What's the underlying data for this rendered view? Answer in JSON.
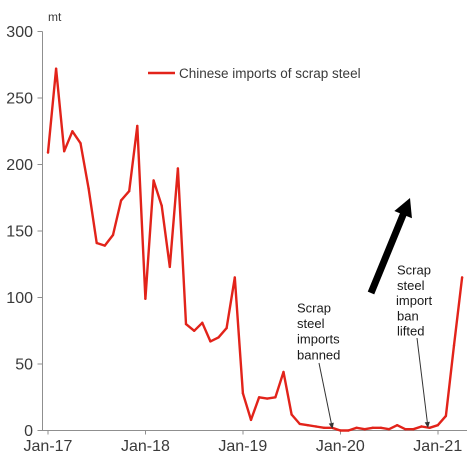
{
  "chart_data": {
    "type": "line",
    "ylabel": "mt",
    "ylim": [
      0,
      300
    ],
    "y_ticks": [
      0,
      50,
      100,
      150,
      200,
      250,
      300
    ],
    "x_ticks": [
      "Jan-17",
      "Jan-18",
      "Jan-19",
      "Jan-20",
      "Jan-21"
    ],
    "x": [
      "Jan-17",
      "Feb-17",
      "Mar-17",
      "Apr-17",
      "May-17",
      "Jun-17",
      "Jul-17",
      "Aug-17",
      "Sep-17",
      "Oct-17",
      "Nov-17",
      "Dec-17",
      "Jan-18",
      "Feb-18",
      "Mar-18",
      "Apr-18",
      "May-18",
      "Jun-18",
      "Jul-18",
      "Aug-18",
      "Sep-18",
      "Oct-18",
      "Nov-18",
      "Dec-18",
      "Jan-19",
      "Feb-19",
      "Mar-19",
      "Apr-19",
      "May-19",
      "Jun-19",
      "Jul-19",
      "Aug-19",
      "Sep-19",
      "Oct-19",
      "Nov-19",
      "Dec-19",
      "Jan-20",
      "Feb-20",
      "Mar-20",
      "Apr-20",
      "May-20",
      "Jun-20",
      "Jul-20",
      "Aug-20",
      "Sep-20",
      "Oct-20",
      "Nov-20",
      "Dec-20",
      "Jan-21",
      "Feb-21",
      "Mar-21",
      "Apr-21"
    ],
    "series": [
      {
        "name": "Chinese imports of scrap steel",
        "color": "#e2231a",
        "values": [
          209,
          272,
          210,
          225,
          216,
          182,
          141,
          139,
          147,
          173,
          180,
          229,
          99,
          188,
          169,
          123,
          197,
          80,
          75,
          81,
          67,
          70,
          77,
          115,
          28,
          8,
          25,
          24,
          25,
          44,
          12,
          5,
          4,
          3,
          2,
          2,
          0,
          0,
          2,
          1,
          2,
          2,
          1,
          4,
          1,
          1,
          3,
          2,
          4,
          11,
          64,
          115
        ]
      }
    ],
    "legend": "top-center",
    "grid": false,
    "annotations": [
      {
        "lines": [
          "Scrap",
          "steel",
          "imports",
          "banned"
        ]
      },
      {
        "lines": [
          "Scrap",
          "steel",
          "import",
          "ban",
          "lifted"
        ]
      }
    ]
  }
}
